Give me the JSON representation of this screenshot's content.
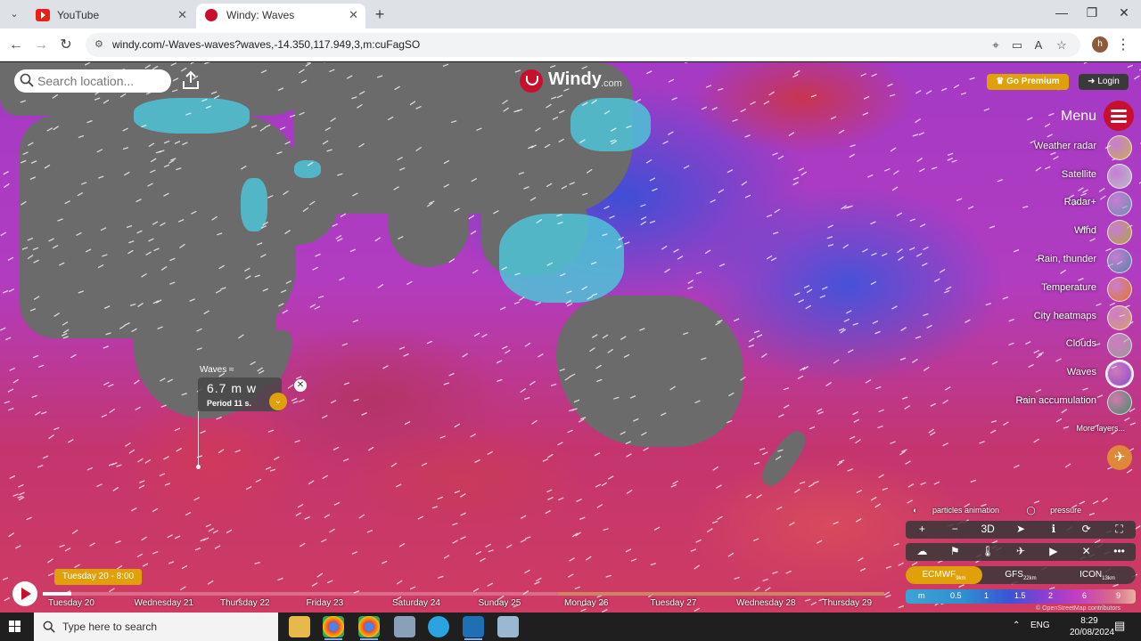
{
  "browser": {
    "tabs": [
      {
        "title": "YouTube",
        "favicon": "youtube-icon",
        "active": false
      },
      {
        "title": "Windy: Waves",
        "favicon": "windy-icon",
        "active": true
      }
    ],
    "url": "windy.com/-Waves-waves?waves,-14.350,117.949,3,m:cuFagSO",
    "profile_initial": "h"
  },
  "windy": {
    "search_placeholder": "Search location...",
    "logo_word": "Windy",
    "logo_suffix": ".com",
    "premium_label": "Go Premium",
    "login_label": "Login",
    "menu_label": "Menu",
    "layers": [
      {
        "label": "Weather radar",
        "color": "#c9b04a"
      },
      {
        "label": "Satellite",
        "color": "#b8c0c4"
      },
      {
        "label": "Radar+",
        "color": "#6e8fb0"
      },
      {
        "label": "Wind",
        "color": "#b2a43e"
      },
      {
        "label": "Rain, thunder",
        "color": "#4f86a8"
      },
      {
        "label": "Temperature",
        "color": "#e07a22"
      },
      {
        "label": "City heatmaps",
        "color": "#d6a070"
      },
      {
        "label": "Clouds",
        "color": "#9a9a9a"
      },
      {
        "label": "Waves",
        "color": "#8a4fd0"
      },
      {
        "label": "Rain accumulation",
        "color": "#3e8f6a"
      }
    ],
    "more_layers": "More layers...",
    "popup": {
      "layer": "Waves ≈",
      "value": "6.7 m",
      "direction": "w",
      "period": "Period 11 s."
    },
    "toggles": [
      "particles animation",
      "pressure"
    ],
    "tools_row1": [
      "+",
      "−",
      "3D",
      "➤",
      "ℹ",
      "⟳",
      "⛶"
    ],
    "tools_row2": [
      "☁",
      "⚑",
      "🌡",
      "✈",
      "▶",
      "✕",
      "•••"
    ],
    "models": [
      {
        "name": "ECMWF",
        "res": "9km",
        "selected": true
      },
      {
        "name": "GFS",
        "res": "22km",
        "selected": false
      },
      {
        "name": "ICON",
        "res": "13km",
        "selected": false
      }
    ],
    "legend": {
      "unit": "m",
      "ticks": [
        "0.5",
        "1",
        "1.5",
        "2",
        "6",
        "9"
      ]
    },
    "attribution": "© OpenStreetMap contributors",
    "current_time": "Tuesday 20 - 8:00",
    "days": [
      "Tuesday 20",
      "Wednesday 21",
      "Thursday 22",
      "Friday 23",
      "Saturday 24",
      "Sunday 25",
      "Monday 26",
      "Tuesday 27",
      "Wednesday 28",
      "Thursday 29"
    ]
  },
  "taskbar": {
    "search_placeholder": "Type here to search",
    "language": "ENG",
    "time": "8:29",
    "date": "20/08/2024"
  }
}
